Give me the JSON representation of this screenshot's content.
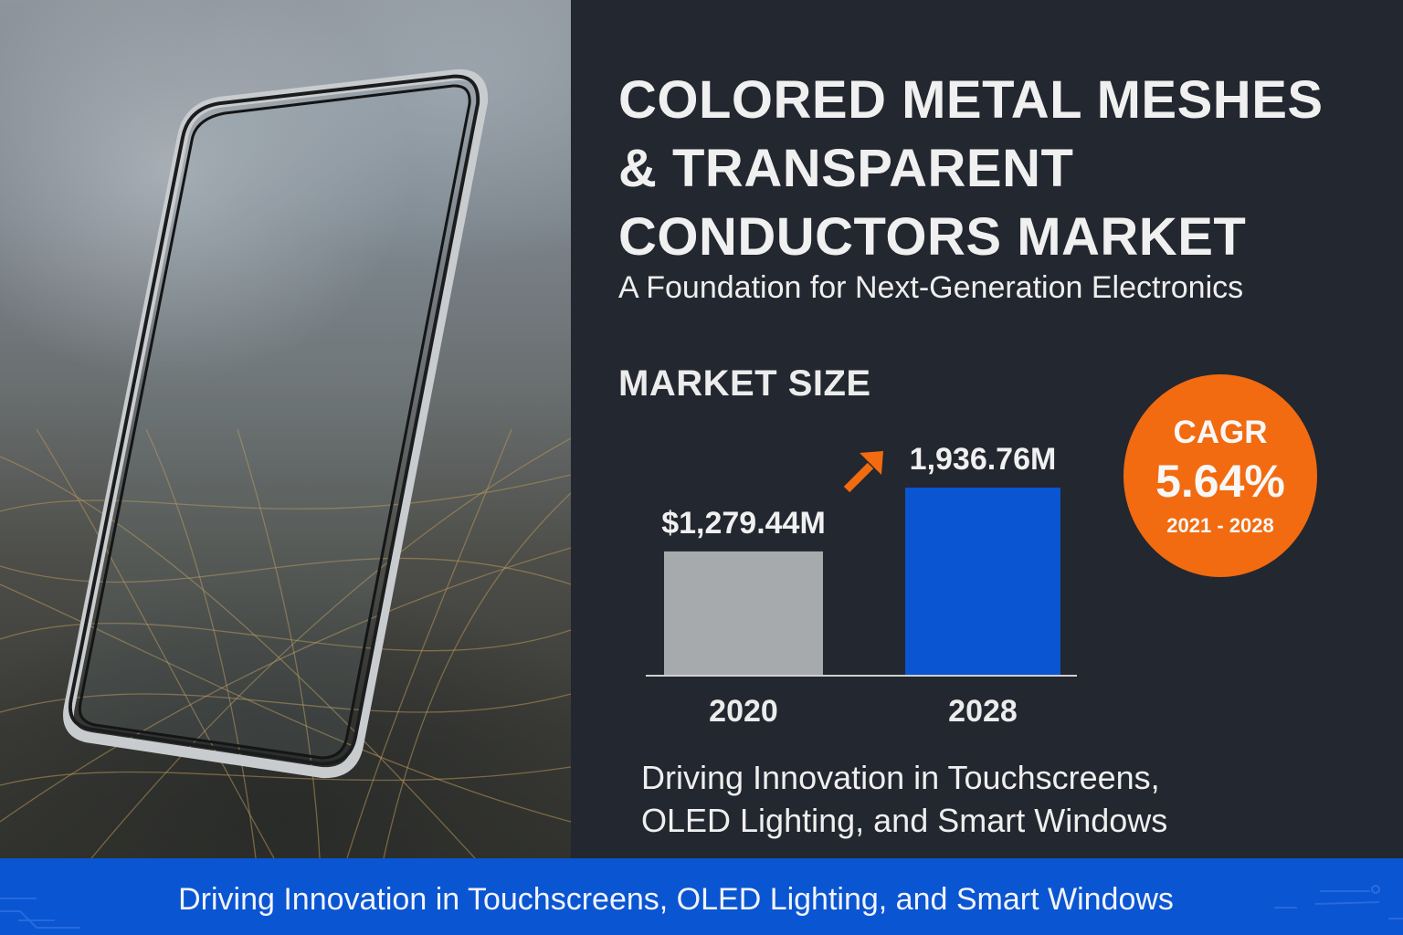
{
  "colors": {
    "panel_bg": "#23272f",
    "bar_2020": "#a7aaad",
    "bar_2028": "#0a55d2",
    "accent_orange": "#f26b10",
    "banner_bg": "#0a55d2"
  },
  "hero_image": {
    "description": "Smartphone frame with transparent screen standing on surface with gold metal mesh lines",
    "icon": "phone-illustration"
  },
  "header": {
    "title_lines": [
      "COLORED METAL MESHES",
      "& TRANSPARENT",
      "CONDUCTORS MARKET"
    ],
    "subtitle": "A Foundation for Next-Generation Electronics"
  },
  "market_size": {
    "label": "MARKET SIZE",
    "growth_icon": "arrow-up-right-icon"
  },
  "chart_data": {
    "type": "bar",
    "title": "MARKET SIZE",
    "categories": [
      "2020",
      "2028"
    ],
    "values": [
      1279.44,
      1936.76
    ],
    "value_labels": [
      "$1,279.44M",
      "1,936.76M"
    ],
    "unit": "USD million",
    "xlabel": "",
    "ylabel": "",
    "ylim": [
      0,
      1936.76
    ],
    "grid": false,
    "legend": "none",
    "bar_colors": [
      "#a7aaad",
      "#0a55d2"
    ]
  },
  "cagr": {
    "label": "CAGR",
    "value": "5.64%",
    "period": "2021 - 2028"
  },
  "tagline": {
    "lines": [
      "Driving Innovation in Touchscreens,",
      "OLED Lighting, and Smart Windows"
    ]
  },
  "banner": {
    "text": "Driving Innovation in Touchscreens, OLED Lighting, and Smart Windows"
  }
}
